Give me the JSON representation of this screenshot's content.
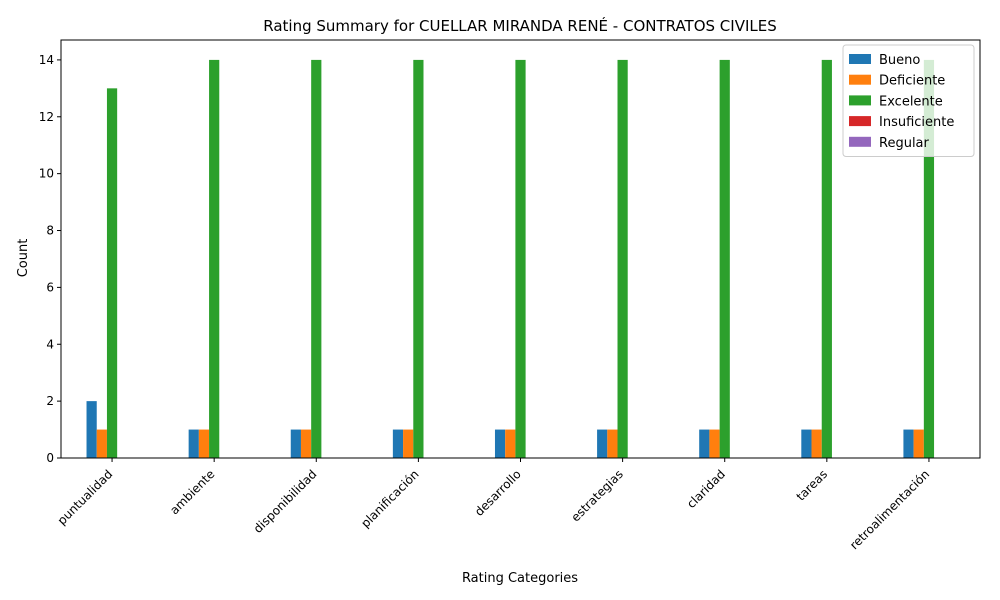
{
  "chart_data": {
    "type": "bar",
    "title": "Rating Summary for CUELLAR MIRANDA RENÉ - CONTRATOS CIVILES",
    "xlabel": "Rating Categories",
    "ylabel": "Count",
    "ylim": [
      0,
      14.7
    ],
    "yticks": [
      0,
      2,
      4,
      6,
      8,
      10,
      12,
      14
    ],
    "categories": [
      "puntualidad",
      "ambiente",
      "disponibilidad",
      "planificación",
      "desarrollo",
      "estrategias",
      "claridad",
      "tareas",
      "retroalimentación"
    ],
    "series": [
      {
        "name": "Bueno",
        "color": "#1f77b4",
        "values": [
          2,
          1,
          1,
          1,
          1,
          1,
          1,
          1,
          1
        ]
      },
      {
        "name": "Deficiente",
        "color": "#ff7f0e",
        "values": [
          1,
          1,
          1,
          1,
          1,
          1,
          1,
          1,
          1
        ]
      },
      {
        "name": "Excelente",
        "color": "#2ca02c",
        "values": [
          13,
          14,
          14,
          14,
          14,
          14,
          14,
          14,
          14
        ]
      },
      {
        "name": "Insuficiente",
        "color": "#d62728",
        "values": [
          0,
          0,
          0,
          0,
          0,
          0,
          0,
          0,
          0
        ]
      },
      {
        "name": "Regular",
        "color": "#9467bd",
        "values": [
          0,
          0,
          0,
          0,
          0,
          0,
          0,
          0,
          0
        ]
      }
    ],
    "legend_position": "top-right",
    "grid": false
  }
}
